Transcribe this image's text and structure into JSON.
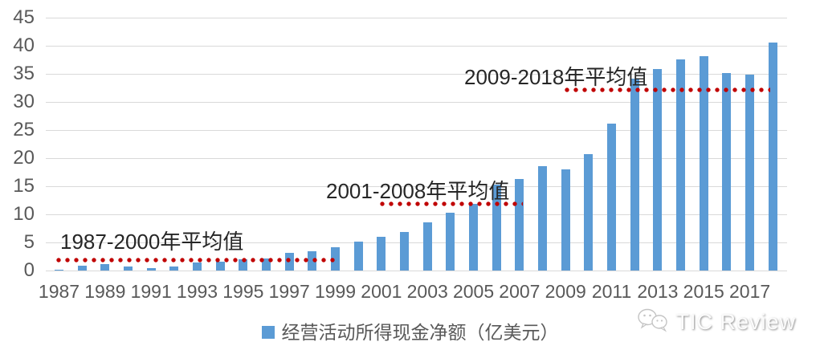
{
  "chart_data": {
    "type": "bar",
    "title": "",
    "xlabel": "",
    "ylabel": "",
    "x": [
      1987,
      1988,
      1989,
      1990,
      1991,
      1992,
      1993,
      1994,
      1995,
      1996,
      1997,
      1998,
      1999,
      2000,
      2001,
      2002,
      2003,
      2004,
      2005,
      2006,
      2007,
      2008,
      2009,
      2010,
      2011,
      2012,
      2013,
      2014,
      2015,
      2016,
      2017,
      2018
    ],
    "series": [
      {
        "name": "经营活动所得现金净额（亿美元）",
        "values": [
          0.1,
          0.8,
          1.1,
          0.7,
          0.4,
          0.7,
          1.4,
          1.6,
          2.0,
          2.2,
          3.2,
          3.4,
          4.1,
          5.1,
          6.0,
          6.9,
          8.5,
          10.3,
          11.9,
          15.3,
          16.3,
          18.5,
          18.0,
          20.7,
          26.2,
          34.1,
          35.8,
          37.6,
          38.1,
          35.2,
          34.8,
          40.5
        ]
      }
    ],
    "ylim": [
      0,
      45
    ],
    "yticks": [
      45,
      40,
      35,
      30,
      25,
      20,
      15,
      10,
      5,
      0
    ],
    "xtick_labels": [
      "1987",
      "1989",
      "1991",
      "1993",
      "1995",
      "1997",
      "1999",
      "2001",
      "2003",
      "2005",
      "2007",
      "2009",
      "2011",
      "2013",
      "2015",
      "2017"
    ],
    "grid": "horizontal-only",
    "legend_position": "bottom-center",
    "bar_color": "#5b9bd5",
    "annotations": [
      {
        "label": "1987-2000年平均值",
        "value": 1.9,
        "span_years": "1987-2000"
      },
      {
        "label": "2001-2008年平均值",
        "value": 11.8,
        "span_years": "2001-2008"
      },
      {
        "label": "2009-2018年平均值",
        "value": 32.1,
        "span_years": "2009-2018"
      }
    ],
    "annotation_line_color": "#c00000"
  },
  "legend": {
    "label": "经营活动所得现金净额（亿美元）",
    "swatch_color": "#5b9bd5"
  },
  "watermark": {
    "text": "TIC Review",
    "icon": "wechat-icon"
  },
  "colors": {
    "bar": "#5b9bd5",
    "gridline": "#d9d9d9",
    "axis_text": "#595959",
    "annotation_dots": "#c00000",
    "annotation_text": "#262626",
    "background": "#ffffff"
  }
}
